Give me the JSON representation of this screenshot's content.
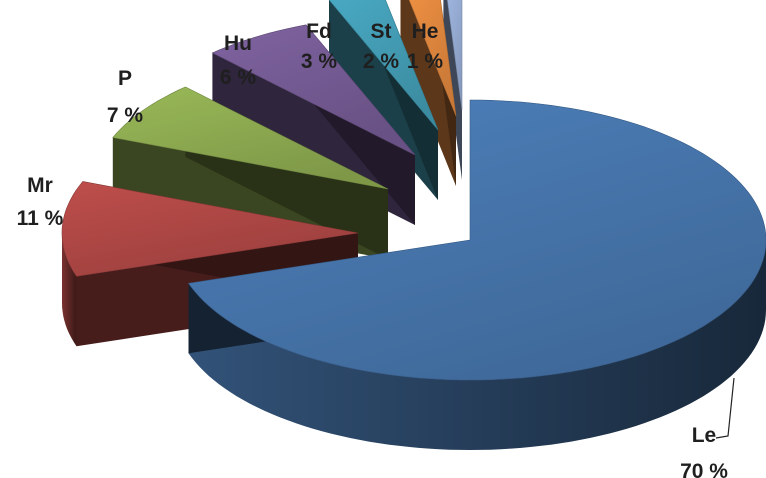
{
  "chart_data": {
    "type": "pie",
    "style": "3d-exploded",
    "title": "",
    "legend": "none",
    "slices": [
      {
        "label": "Le",
        "value": 70,
        "value_label": "70 %",
        "color": "#4572A7"
      },
      {
        "label": "Mr",
        "value": 11,
        "value_label": "11 %",
        "color": "#AA4643"
      },
      {
        "label": "P",
        "value": 7,
        "value_label": "7 %",
        "color": "#89A54E"
      },
      {
        "label": "Hu",
        "value": 6,
        "value_label": "6 %",
        "color": "#71588F"
      },
      {
        "label": "Fd",
        "value": 3,
        "value_label": "3 %",
        "color": "#4198AF"
      },
      {
        "label": "St",
        "value": 2,
        "value_label": "2 %",
        "color": "#DB843D"
      },
      {
        "label": "He",
        "value": 1,
        "value_label": "1 %",
        "color": "#93A9CF"
      }
    ]
  }
}
